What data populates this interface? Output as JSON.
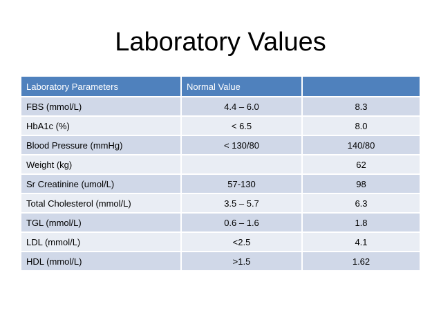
{
  "title": "Laboratory Values",
  "table": {
    "headers": [
      "Laboratory Parameters",
      "Normal Value",
      ""
    ],
    "rows": [
      {
        "parameter": "FBS (mmol/L)",
        "normal": "4.4 – 6.0",
        "value": "8.3"
      },
      {
        "parameter": "HbA1c (%)",
        "normal": "< 6.5",
        "value": "8.0"
      },
      {
        "parameter": "Blood Pressure (mmHg)",
        "normal": "< 130/80",
        "value": "140/80"
      },
      {
        "parameter": "Weight (kg)",
        "normal": "",
        "value": "62"
      },
      {
        "parameter": "Sr Creatinine (umol/L)",
        "normal": "57-130",
        "value": "98"
      },
      {
        "parameter": "Total Cholesterol (mmol/L)",
        "normal": "3.5 – 5.7",
        "value": "6.3"
      },
      {
        "parameter": "TGL (mmol/L)",
        "normal": "0.6 – 1.6",
        "value": "1.8"
      },
      {
        "parameter": "LDL (mmol/L)",
        "normal": "<2.5",
        "value": "4.1"
      },
      {
        "parameter": "HDL (mmol/L)",
        "normal": ">1.5",
        "value": "1.62"
      }
    ]
  },
  "colors": {
    "header_bg": "#4f81bd",
    "row_odd_bg": "#d0d8e8",
    "row_even_bg": "#e9edf4"
  }
}
